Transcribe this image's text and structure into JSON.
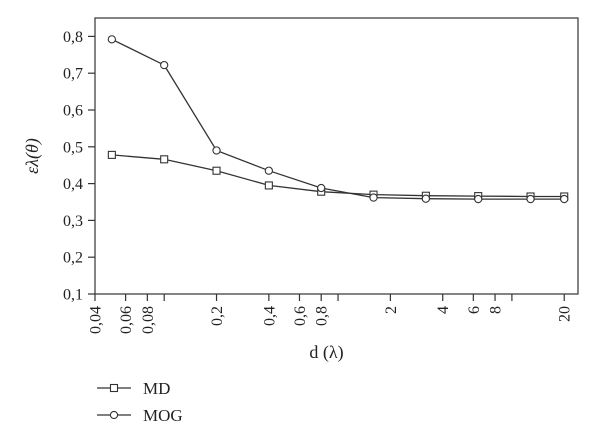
{
  "chart_data": {
    "type": "line",
    "title": "",
    "xlabel": "d (λ)",
    "ylabel": "ελ(θ)",
    "x_scale": "log",
    "xlim": [
      0.04,
      24
    ],
    "ylim": [
      0.1,
      0.85
    ],
    "grid": false,
    "legend_position": "bottom-left",
    "x_ticks": [
      {
        "value": 0.04,
        "label": "0,04"
      },
      {
        "value": 0.06,
        "label": "0,06"
      },
      {
        "value": 0.08,
        "label": "0,08"
      },
      {
        "value": 0.2,
        "label": "0,2"
      },
      {
        "value": 0.4,
        "label": "0,4"
      },
      {
        "value": 0.6,
        "label": "0,6"
      },
      {
        "value": 0.8,
        "label": "0,8"
      },
      {
        "value": 2,
        "label": "2"
      },
      {
        "value": 4,
        "label": "4"
      },
      {
        "value": 6,
        "label": "6"
      },
      {
        "value": 8,
        "label": "8"
      },
      {
        "value": 20,
        "label": "20"
      }
    ],
    "x_minor_ticks": [
      0.1,
      1,
      10
    ],
    "y_ticks": [
      {
        "value": 0.1,
        "label": "0,1"
      },
      {
        "value": 0.2,
        "label": "0,2"
      },
      {
        "value": 0.3,
        "label": "0,3"
      },
      {
        "value": 0.4,
        "label": "0,4"
      },
      {
        "value": 0.5,
        "label": "0,5"
      },
      {
        "value": 0.6,
        "label": "0,6"
      },
      {
        "value": 0.7,
        "label": "0,7"
      },
      {
        "value": 0.8,
        "label": "0,8"
      }
    ],
    "series": [
      {
        "name": "MD",
        "marker": "square",
        "color": "#333333",
        "x": [
          0.05,
          0.1,
          0.2,
          0.4,
          0.8,
          1.6,
          3.2,
          6.4,
          12.8,
          20
        ],
        "y": [
          0.478,
          0.466,
          0.435,
          0.395,
          0.378,
          0.37,
          0.367,
          0.366,
          0.365,
          0.365
        ]
      },
      {
        "name": "MOG",
        "marker": "circle",
        "color": "#333333",
        "x": [
          0.05,
          0.1,
          0.2,
          0.4,
          0.8,
          1.6,
          3.2,
          6.4,
          12.8,
          20
        ],
        "y": [
          0.792,
          0.722,
          0.49,
          0.435,
          0.388,
          0.362,
          0.359,
          0.358,
          0.358,
          0.358
        ]
      }
    ]
  }
}
